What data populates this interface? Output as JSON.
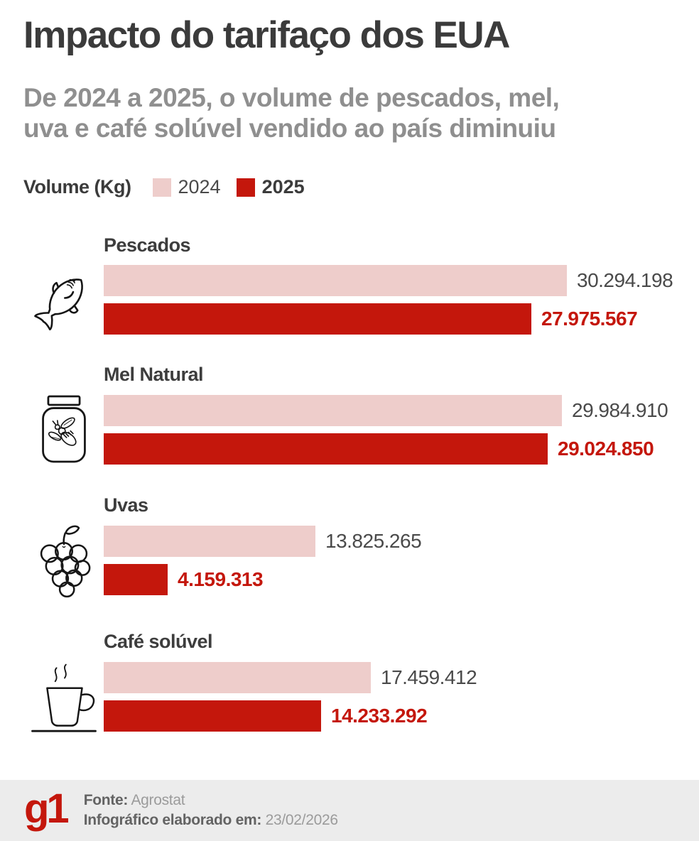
{
  "header": {
    "title": "Impacto do tarifaço dos EUA",
    "subtitle_lines": [
      "De 2024 a 2025, o volume de pescados, mel,",
      "uva e café solúvel vendido ao país diminuiu"
    ]
  },
  "legend": {
    "axis_label": "Volume (Kg)",
    "items": [
      {
        "label": "2024",
        "color": "#eecdcb"
      },
      {
        "label": "2025",
        "color": "#c4170c"
      }
    ]
  },
  "chart_data": {
    "type": "bar",
    "orientation": "horizontal",
    "unit": "Kg",
    "title": "Volume (Kg)",
    "categories": [
      "Pescados",
      "Mel Natural",
      "Uvas",
      "Café solúvel"
    ],
    "category_icons": [
      "fish-icon",
      "honey-jar-icon",
      "grapes-icon",
      "coffee-cup-icon"
    ],
    "series": [
      {
        "name": "2024",
        "color": "#eecdcb",
        "values": [
          30294198,
          29984910,
          13825265,
          17459412
        ]
      },
      {
        "name": "2025",
        "color": "#c4170c",
        "values": [
          27975567,
          29024850,
          4159313,
          14233292
        ]
      }
    ],
    "value_labels": [
      [
        "30.294.198",
        "29.984.910",
        "13.825.265",
        "17.459.412"
      ],
      [
        "27.975.567",
        "29.024.850",
        "4.159.313",
        "14.233.292"
      ]
    ],
    "max_value": 30294198,
    "legend_position": "top",
    "grid": false
  },
  "footer": {
    "logo": "g1",
    "source_label": "Fonte:",
    "source_value": "Agrostat",
    "date_label": "Infográfico elaborado em:",
    "date_value": "23/02/2026"
  },
  "colors": {
    "accent_red": "#c4170c",
    "light_pink": "#eecdcb",
    "title_dark": "#3b3b3b",
    "subtitle_gray": "#8f8f8f",
    "footer_bg": "#ececec"
  }
}
